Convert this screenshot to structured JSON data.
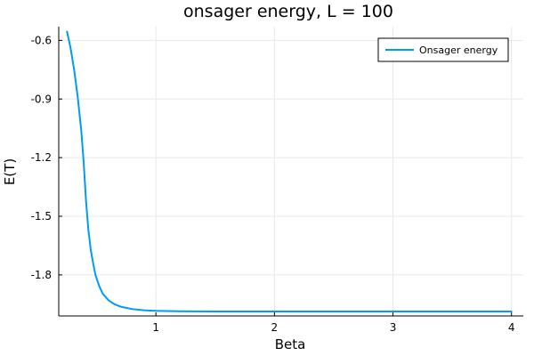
{
  "chart_data": {
    "type": "line",
    "title": "onsager energy, L = 100",
    "xlabel": "Beta",
    "ylabel": "E(T)",
    "xlim": [
      0.18,
      4.1
    ],
    "ylim": [
      -2.01,
      -0.53
    ],
    "x_ticks": [
      1,
      2,
      3,
      4
    ],
    "y_ticks": [
      -0.6,
      -0.9,
      -1.2,
      -1.5,
      -1.8
    ],
    "x_tick_labels": [
      "1",
      "2",
      "3",
      "4"
    ],
    "y_tick_labels": [
      "-0.6",
      "-0.9",
      "-1.2",
      "-1.5",
      "-1.8"
    ],
    "grid": true,
    "legend_position": "top-right",
    "series": [
      {
        "name": "Onsager energy",
        "color": "#009af9",
        "x": [
          0.25,
          0.28,
          0.31,
          0.34,
          0.37,
          0.39,
          0.41,
          0.43,
          0.45,
          0.47,
          0.49,
          0.52,
          0.55,
          0.6,
          0.65,
          0.7,
          0.8,
          0.9,
          1.0,
          1.2,
          1.5,
          2.0,
          2.5,
          3.0,
          3.5,
          4.0
        ],
        "y": [
          -0.555,
          -0.64,
          -0.75,
          -0.89,
          -1.06,
          -1.22,
          -1.42,
          -1.57,
          -1.67,
          -1.74,
          -1.8,
          -1.855,
          -1.895,
          -1.93,
          -1.95,
          -1.962,
          -1.975,
          -1.981,
          -1.984,
          -1.986,
          -1.987,
          -1.987,
          -1.987,
          -1.987,
          -1.987,
          -1.987
        ]
      }
    ]
  }
}
